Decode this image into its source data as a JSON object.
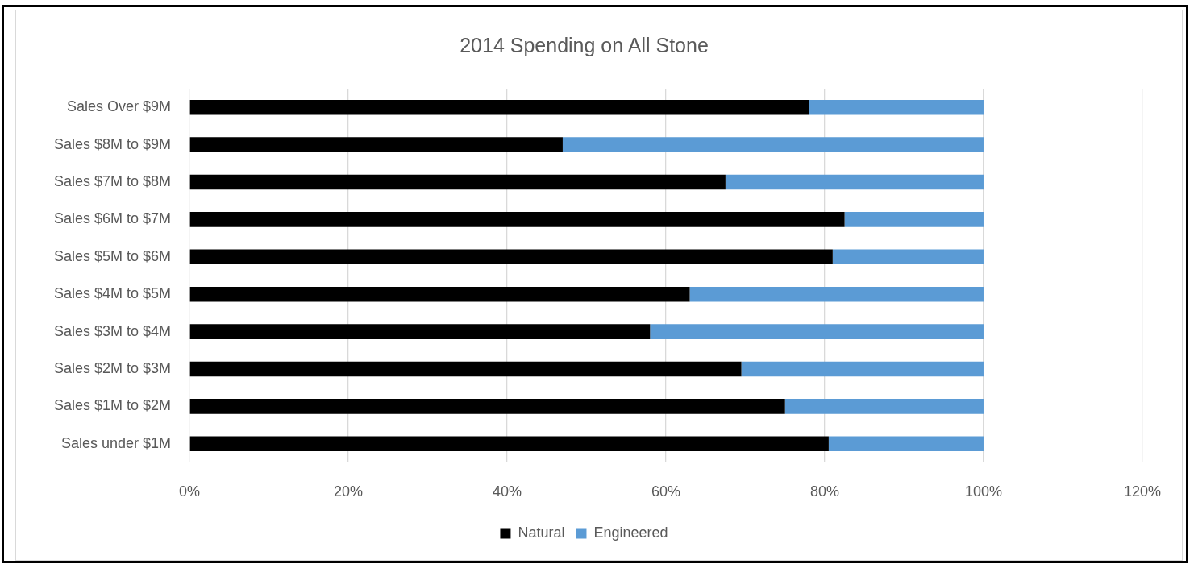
{
  "chart_data": {
    "type": "bar",
    "title": "2014 Spending on All Stone",
    "orientation": "horizontal",
    "stacked": true,
    "categories": [
      "Sales Over $9M",
      "Sales $8M to $9M",
      "Sales $7M to $8M",
      "Sales $6M to $7M",
      "Sales $5M to $6M",
      "Sales $4M to $5M",
      "Sales $3M to $4M",
      "Sales $2M to $3M",
      "Sales $1M to $2M",
      "Sales under $1M"
    ],
    "series": [
      {
        "name": "Natural",
        "color": "#000000",
        "values": [
          78,
          47,
          67.5,
          82.5,
          81,
          63,
          58,
          69.5,
          75,
          80.5
        ]
      },
      {
        "name": "Engineered",
        "color": "#5b9bd5",
        "values": [
          22,
          53,
          32.5,
          17.5,
          19,
          37,
          42,
          30.5,
          25,
          19.5
        ]
      }
    ],
    "xlim": [
      0,
      120
    ],
    "xticks": [
      {
        "value": 0,
        "label": "0%"
      },
      {
        "value": 20,
        "label": "20%"
      },
      {
        "value": 40,
        "label": "40%"
      },
      {
        "value": 60,
        "label": "60%"
      },
      {
        "value": 80,
        "label": "80%"
      },
      {
        "value": 100,
        "label": "100%"
      },
      {
        "value": 120,
        "label": "120%"
      }
    ],
    "grid": "x",
    "legend": "bottom"
  }
}
